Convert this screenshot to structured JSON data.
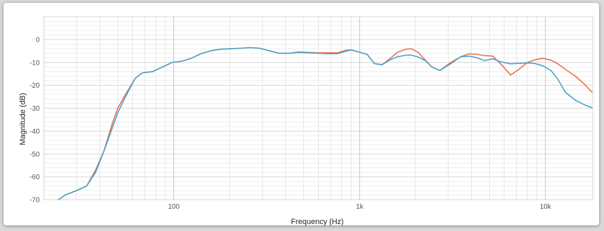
{
  "chart_data": {
    "type": "line",
    "title": "",
    "xlabel": "Frequency (Hz)",
    "ylabel": "Magnitude (dB)",
    "x_scale": "log",
    "xlim": [
      20,
      18000
    ],
    "ylim": [
      -70,
      10
    ],
    "grid": true,
    "legend": "none",
    "x_ticks": [
      {
        "value": 100,
        "label": "100"
      },
      {
        "value": 1000,
        "label": "1k"
      },
      {
        "value": 10000,
        "label": "10k"
      }
    ],
    "y_ticks": [
      {
        "value": 0,
        "label": "0"
      },
      {
        "value": -10,
        "label": "-10"
      },
      {
        "value": -20,
        "label": "-20"
      },
      {
        "value": -30,
        "label": "-30"
      },
      {
        "value": -40,
        "label": "-40"
      },
      {
        "value": -50,
        "label": "-50"
      },
      {
        "value": -60,
        "label": "-60"
      },
      {
        "value": -70,
        "label": "-70"
      }
    ],
    "series": [
      {
        "color": "#e8714a",
        "points": [
          [
            24,
            -70
          ],
          [
            26,
            -68
          ],
          [
            30,
            -66
          ],
          [
            34,
            -64
          ],
          [
            38,
            -57
          ],
          [
            42,
            -49
          ],
          [
            47,
            -36
          ],
          [
            50,
            -30
          ],
          [
            55,
            -24
          ],
          [
            62,
            -17
          ],
          [
            68,
            -14.5
          ],
          [
            77,
            -14
          ],
          [
            87,
            -12
          ],
          [
            98,
            -10
          ],
          [
            110,
            -9.5
          ],
          [
            124,
            -8.2
          ],
          [
            140,
            -6.2
          ],
          [
            160,
            -4.8
          ],
          [
            180,
            -4.2
          ],
          [
            203,
            -4
          ],
          [
            230,
            -3.8
          ],
          [
            258,
            -3.5
          ],
          [
            290,
            -3.8
          ],
          [
            330,
            -5
          ],
          [
            370,
            -6
          ],
          [
            420,
            -6
          ],
          [
            470,
            -5.4
          ],
          [
            530,
            -5.6
          ],
          [
            600,
            -5.8
          ],
          [
            680,
            -5.8
          ],
          [
            760,
            -5.8
          ],
          [
            850,
            -4.6
          ],
          [
            900,
            -4.5
          ],
          [
            1000,
            -5.5
          ],
          [
            1100,
            -6.5
          ],
          [
            1200,
            -10.5
          ],
          [
            1320,
            -11
          ],
          [
            1450,
            -8.5
          ],
          [
            1600,
            -5.5
          ],
          [
            1780,
            -4.2
          ],
          [
            1900,
            -4
          ],
          [
            2060,
            -5.5
          ],
          [
            2260,
            -9
          ],
          [
            2450,
            -12
          ],
          [
            2700,
            -13.5
          ],
          [
            3100,
            -10
          ],
          [
            3500,
            -7.5
          ],
          [
            3900,
            -6.2
          ],
          [
            4300,
            -6.5
          ],
          [
            4700,
            -7
          ],
          [
            5200,
            -7.2
          ],
          [
            5800,
            -11
          ],
          [
            6500,
            -15.5
          ],
          [
            7200,
            -13
          ],
          [
            8000,
            -10
          ],
          [
            8800,
            -8.8
          ],
          [
            9700,
            -8.2
          ],
          [
            10700,
            -9
          ],
          [
            11600,
            -10.5
          ],
          [
            12800,
            -13
          ],
          [
            14500,
            -16
          ],
          [
            16200,
            -19.5
          ],
          [
            17800,
            -23
          ]
        ]
      },
      {
        "color": "#4aa3c8",
        "points": [
          [
            24,
            -70
          ],
          [
            26,
            -68
          ],
          [
            30,
            -66
          ],
          [
            34,
            -64
          ],
          [
            38,
            -58
          ],
          [
            42,
            -49
          ],
          [
            47,
            -38
          ],
          [
            50,
            -32
          ],
          [
            55,
            -25
          ],
          [
            62,
            -17
          ],
          [
            68,
            -14.5
          ],
          [
            77,
            -14
          ],
          [
            87,
            -12
          ],
          [
            98,
            -10
          ],
          [
            110,
            -9.5
          ],
          [
            124,
            -8.2
          ],
          [
            140,
            -6.2
          ],
          [
            160,
            -4.8
          ],
          [
            180,
            -4.2
          ],
          [
            203,
            -4
          ],
          [
            230,
            -3.8
          ],
          [
            258,
            -3.5
          ],
          [
            290,
            -3.8
          ],
          [
            330,
            -5
          ],
          [
            370,
            -6
          ],
          [
            420,
            -6
          ],
          [
            470,
            -5.6
          ],
          [
            530,
            -5.8
          ],
          [
            600,
            -6
          ],
          [
            680,
            -6.2
          ],
          [
            760,
            -6.2
          ],
          [
            850,
            -5
          ],
          [
            900,
            -4.5
          ],
          [
            1000,
            -5.5
          ],
          [
            1100,
            -6.5
          ],
          [
            1200,
            -10.5
          ],
          [
            1320,
            -11
          ],
          [
            1450,
            -9
          ],
          [
            1600,
            -7.5
          ],
          [
            1780,
            -6.8
          ],
          [
            1900,
            -6.8
          ],
          [
            2060,
            -7.6
          ],
          [
            2260,
            -9.2
          ],
          [
            2450,
            -12
          ],
          [
            2700,
            -13.5
          ],
          [
            3100,
            -10.5
          ],
          [
            3500,
            -7.5
          ],
          [
            3900,
            -7.2
          ],
          [
            4300,
            -8
          ],
          [
            4700,
            -9.2
          ],
          [
            5200,
            -8.4
          ],
          [
            5800,
            -9.8
          ],
          [
            6500,
            -10.6
          ],
          [
            7200,
            -10.4
          ],
          [
            8000,
            -10.2
          ],
          [
            8800,
            -10.5
          ],
          [
            9700,
            -11.5
          ],
          [
            10700,
            -13.5
          ],
          [
            11600,
            -17
          ],
          [
            12800,
            -23
          ],
          [
            14500,
            -26.5
          ],
          [
            16200,
            -28.5
          ],
          [
            17800,
            -29.8
          ]
        ]
      }
    ]
  }
}
